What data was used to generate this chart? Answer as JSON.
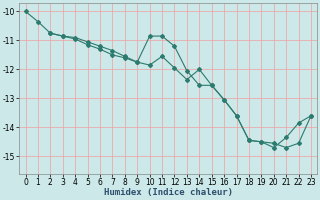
{
  "title": "",
  "xlabel": "Humidex (Indice chaleur)",
  "ylabel": "",
  "background_color": "#cce8e8",
  "grid_color": "#f0a0a0",
  "line_color": "#2d7a6e",
  "xlim": [
    -0.5,
    23.5
  ],
  "ylim": [
    -15.6,
    -9.7
  ],
  "yticks": [
    -10,
    -11,
    -12,
    -13,
    -14,
    -15
  ],
  "xticks": [
    0,
    1,
    2,
    3,
    4,
    5,
    6,
    7,
    8,
    9,
    10,
    11,
    12,
    13,
    14,
    15,
    16,
    17,
    18,
    19,
    20,
    21,
    22,
    23
  ],
  "series1_x": [
    0,
    1,
    2,
    3,
    4,
    5,
    6,
    7,
    8,
    9,
    10,
    11,
    12,
    13,
    14,
    15,
    16,
    17,
    18,
    19,
    20,
    21,
    22,
    23
  ],
  "series1_y": [
    -10.0,
    -10.35,
    -10.75,
    -10.85,
    -10.9,
    -11.05,
    -11.2,
    -11.35,
    -11.55,
    -11.75,
    -10.85,
    -10.85,
    -11.2,
    -12.05,
    -12.55,
    -12.55,
    -13.05,
    -13.6,
    -14.45,
    -14.5,
    -14.55,
    -14.7,
    -14.55,
    -13.6
  ],
  "series2_x": [
    2,
    3,
    4,
    5,
    6,
    7,
    8,
    9,
    10,
    11,
    12,
    13,
    14,
    15,
    16,
    17,
    18,
    19,
    20,
    21,
    22,
    23
  ],
  "series2_y": [
    -10.75,
    -10.85,
    -10.95,
    -11.15,
    -11.3,
    -11.5,
    -11.6,
    -11.75,
    -11.85,
    -11.55,
    -11.95,
    -12.35,
    -12.0,
    -12.55,
    -13.05,
    -13.6,
    -14.45,
    -14.5,
    -14.7,
    -14.35,
    -13.85,
    -13.6
  ],
  "xlabel_color": "#2d4f6e",
  "xlabel_fontsize": 6.5,
  "tick_fontsize": 5.5
}
